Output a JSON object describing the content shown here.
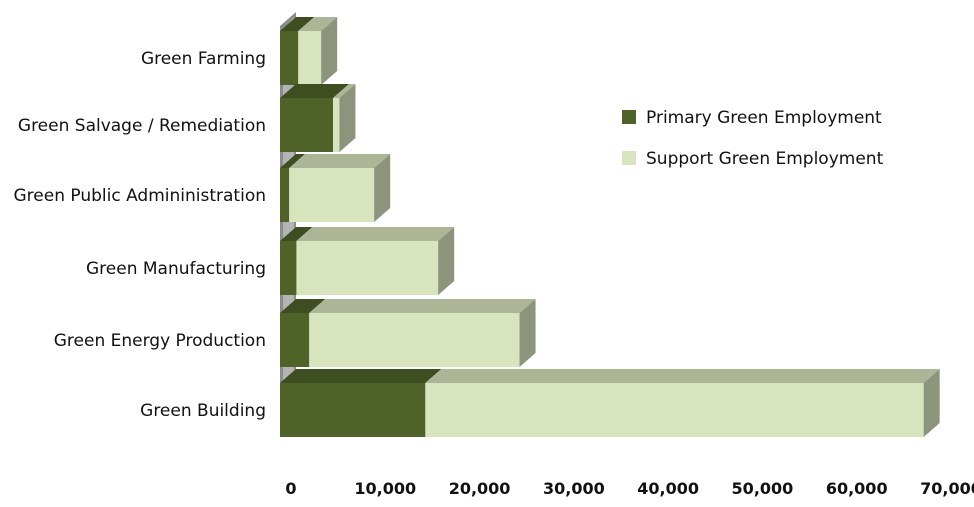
{
  "chart_data": {
    "type": "bar",
    "orientation": "horizontal",
    "stacked": true,
    "three_d": true,
    "categories": [
      "Green Farming",
      "Green Salvage / Remediation",
      "Green Public Admininistration",
      "Green Manufacturing",
      "Green Energy Production",
      "Green Building"
    ],
    "series": [
      {
        "name": "Primary Green Employment",
        "color": "#4f6228",
        "values": [
          2000,
          5800,
          1000,
          1800,
          3200,
          15900
        ]
      },
      {
        "name": "Support Green Employment",
        "color": "#d7e4bd",
        "values": [
          2500,
          700,
          9300,
          15500,
          23000,
          54500
        ]
      }
    ],
    "x_ticks": [
      "0",
      "10,000",
      "20,000",
      "30,000",
      "40,000",
      "50,000",
      "60,000",
      "70,000"
    ],
    "xlim": [
      0,
      70000
    ],
    "grid": false,
    "legend_position": "right"
  }
}
